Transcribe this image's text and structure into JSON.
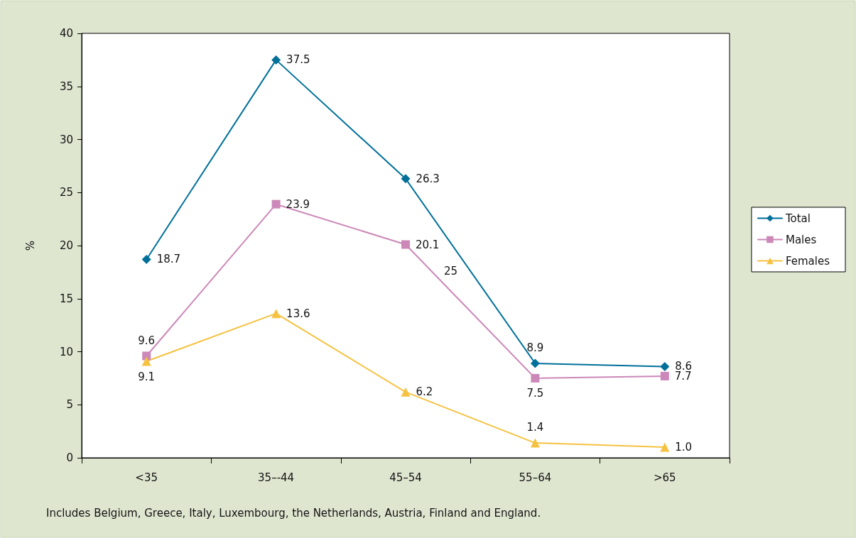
{
  "chart_data": {
    "type": "line",
    "ylabel": "%",
    "categories": [
      "<35",
      "35–-44",
      "45–54",
      "55–64",
      ">65"
    ],
    "series": [
      {
        "name": "Total",
        "color": "#00709a",
        "marker": "diamond",
        "values": [
          18.7,
          37.5,
          26.3,
          8.9,
          8.6
        ],
        "value_labels": [
          "18.7",
          "37.5",
          "26.3",
          "8.9",
          "8.6"
        ]
      },
      {
        "name": "Males",
        "color": "#cc88b8",
        "marker": "square",
        "values": [
          9.6,
          23.9,
          20.1,
          7.5,
          7.7
        ],
        "value_labels": [
          "9.6",
          "23.9",
          "20.1",
          "7.5",
          "7.7"
        ]
      },
      {
        "name": "Females",
        "color": "#f5c242",
        "marker": "triangle",
        "values": [
          9.1,
          13.6,
          6.2,
          1.4,
          1.0
        ],
        "value_labels": [
          "9.1",
          "13.6",
          "6.2",
          "1.4",
          "1.0"
        ]
      }
    ],
    "ylim": [
      0,
      40
    ],
    "yticks": [
      0,
      5,
      10,
      15,
      20,
      25,
      30,
      35,
      40
    ],
    "grid": false,
    "legend": "right",
    "line_style": "solid",
    "annotations": [
      "25",
      "Includes Belgium, Greece, Italy, Luxembourg, the Netherlands, Austria, Finland and England."
    ]
  }
}
